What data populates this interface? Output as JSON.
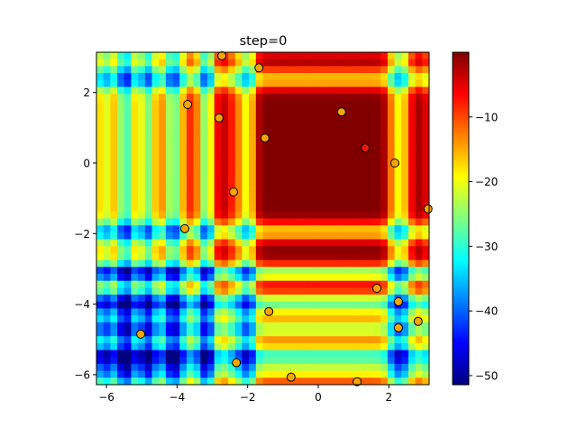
{
  "chart_data": {
    "type": "heatmap",
    "title": "step=0",
    "xlabel": "",
    "ylabel": "",
    "xlim": [
      -6.283,
      3.1416
    ],
    "ylim": [
      -6.283,
      3.1416
    ],
    "x_ticks": [
      "−6",
      "−4",
      "−2",
      "0",
      "2"
    ],
    "x_tick_values": [
      -6,
      -4,
      -2,
      0,
      2
    ],
    "y_ticks": [
      "−6",
      "−4",
      "−2",
      "0",
      "2"
    ],
    "y_tick_values": [
      -6,
      -4,
      -2,
      0,
      2
    ],
    "colormap": "jet",
    "grid": false,
    "heatmap": {
      "cells_per_axis": 48,
      "zlim": [
        -51.4,
        0
      ],
      "x_dips": [
        [
          -6.02,
          18
        ],
        [
          -5.43,
          25
        ],
        [
          -4.8,
          22
        ],
        [
          -4.08,
          25
        ],
        [
          -3.21,
          21
        ],
        [
          -2.07,
          17
        ],
        [
          2.27,
          17
        ]
      ],
      "y_dips": [
        [
          2.37,
          17
        ],
        [
          -1.94,
          17
        ],
        [
          -3.11,
          20
        ],
        [
          -4.0,
          25
        ],
        [
          -4.69,
          21
        ],
        [
          -5.41,
          25
        ],
        [
          -5.89,
          18
        ]
      ]
    },
    "colorbar": {
      "ticks": [
        "−10",
        "−20",
        "−30",
        "−40",
        "−50"
      ],
      "tick_values": [
        -10,
        -20,
        -30,
        -40,
        -50
      ],
      "range": [
        -51.4,
        0
      ]
    },
    "scatter": {
      "points": [
        {
          "x": -2.73,
          "y": 3.04,
          "color": "#f5a500"
        },
        {
          "x": -1.68,
          "y": 2.7,
          "color": "#f5a500"
        },
        {
          "x": -3.7,
          "y": 1.66,
          "color": "#f5a500"
        },
        {
          "x": -2.81,
          "y": 1.28,
          "color": "#f5a500"
        },
        {
          "x": 0.66,
          "y": 1.45,
          "color": "#f5a500"
        },
        {
          "x": -1.51,
          "y": 0.71,
          "color": "#f5a500"
        },
        {
          "x": 1.33,
          "y": 0.43,
          "color": "#e8170c"
        },
        {
          "x": 2.17,
          "y": 0.0,
          "color": "#f5a500"
        },
        {
          "x": -2.4,
          "y": -0.82,
          "color": "#f5a500"
        },
        {
          "x": 3.11,
          "y": -1.3,
          "color": "#f5a500"
        },
        {
          "x": -3.78,
          "y": -1.86,
          "color": "#f5a500"
        },
        {
          "x": 1.66,
          "y": -3.55,
          "color": "#f5a500"
        },
        {
          "x": 2.27,
          "y": -3.93,
          "color": "#f5a500"
        },
        {
          "x": -1.4,
          "y": -4.21,
          "color": "#f5a500"
        },
        {
          "x": 2.83,
          "y": -4.49,
          "color": "#f5a500"
        },
        {
          "x": 2.27,
          "y": -4.67,
          "color": "#f5a500"
        },
        {
          "x": -5.03,
          "y": -4.85,
          "color": "#f5a500"
        },
        {
          "x": -2.32,
          "y": -5.66,
          "color": "#f5a500"
        },
        {
          "x": -0.77,
          "y": -6.07,
          "color": "#f5a500"
        },
        {
          "x": 1.1,
          "y": -6.2,
          "color": "#f5a500"
        }
      ]
    }
  }
}
